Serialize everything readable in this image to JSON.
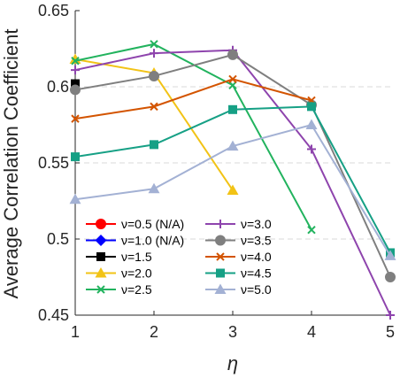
{
  "chart_data": {
    "type": "line",
    "title": "",
    "xlabel": "η",
    "ylabel": "Average Correlation Coefficient",
    "x": [
      1,
      2,
      3,
      4,
      5
    ],
    "xlim": [
      1,
      5
    ],
    "ylim": [
      0.45,
      0.65
    ],
    "x_ticks": [
      "1",
      "2",
      "3",
      "4",
      "5"
    ],
    "y_ticks": [
      "0.45",
      "0.5",
      "0.55",
      "0.6",
      "0.65"
    ],
    "grid": "horizontal dashed",
    "legend_position": "bottom-left",
    "series": [
      {
        "name": "ν=0.5 (N/A)",
        "color": "#ff0000",
        "marker": "circle",
        "values": [
          null,
          null,
          null,
          null,
          null
        ]
      },
      {
        "name": "ν=1.0 (N/A)",
        "color": "#0000ff",
        "marker": "diamond",
        "values": [
          null,
          null,
          null,
          null,
          null
        ]
      },
      {
        "name": "ν=1.5",
        "color": "#000000",
        "marker": "square",
        "values": [
          0.602,
          null,
          null,
          null,
          null
        ]
      },
      {
        "name": "ν=2.0",
        "color": "#f2c316",
        "marker": "triangle",
        "values": [
          0.618,
          0.609,
          0.532,
          null,
          null
        ]
      },
      {
        "name": "ν=2.5",
        "color": "#22b35e",
        "marker": "x",
        "values": [
          0.617,
          0.628,
          0.601,
          0.506,
          null
        ]
      },
      {
        "name": "ν=3.0",
        "color": "#8e44ad",
        "marker": "plus",
        "values": [
          0.611,
          0.622,
          0.624,
          0.559,
          0.45
        ]
      },
      {
        "name": "ν=3.5",
        "color": "#7f7f7f",
        "marker": "circle",
        "values": [
          0.598,
          0.607,
          0.621,
          0.588,
          0.475
        ]
      },
      {
        "name": "ν=4.0",
        "color": "#d35400",
        "marker": "x",
        "values": [
          0.579,
          0.587,
          0.605,
          0.591,
          null
        ]
      },
      {
        "name": "ν=4.5",
        "color": "#16a085",
        "marker": "square",
        "values": [
          0.554,
          0.562,
          0.585,
          0.587,
          0.491
        ]
      },
      {
        "name": "ν=5.0",
        "color": "#a3b1d4",
        "marker": "triangle",
        "values": [
          0.526,
          0.533,
          0.561,
          0.575,
          0.489
        ]
      }
    ]
  }
}
